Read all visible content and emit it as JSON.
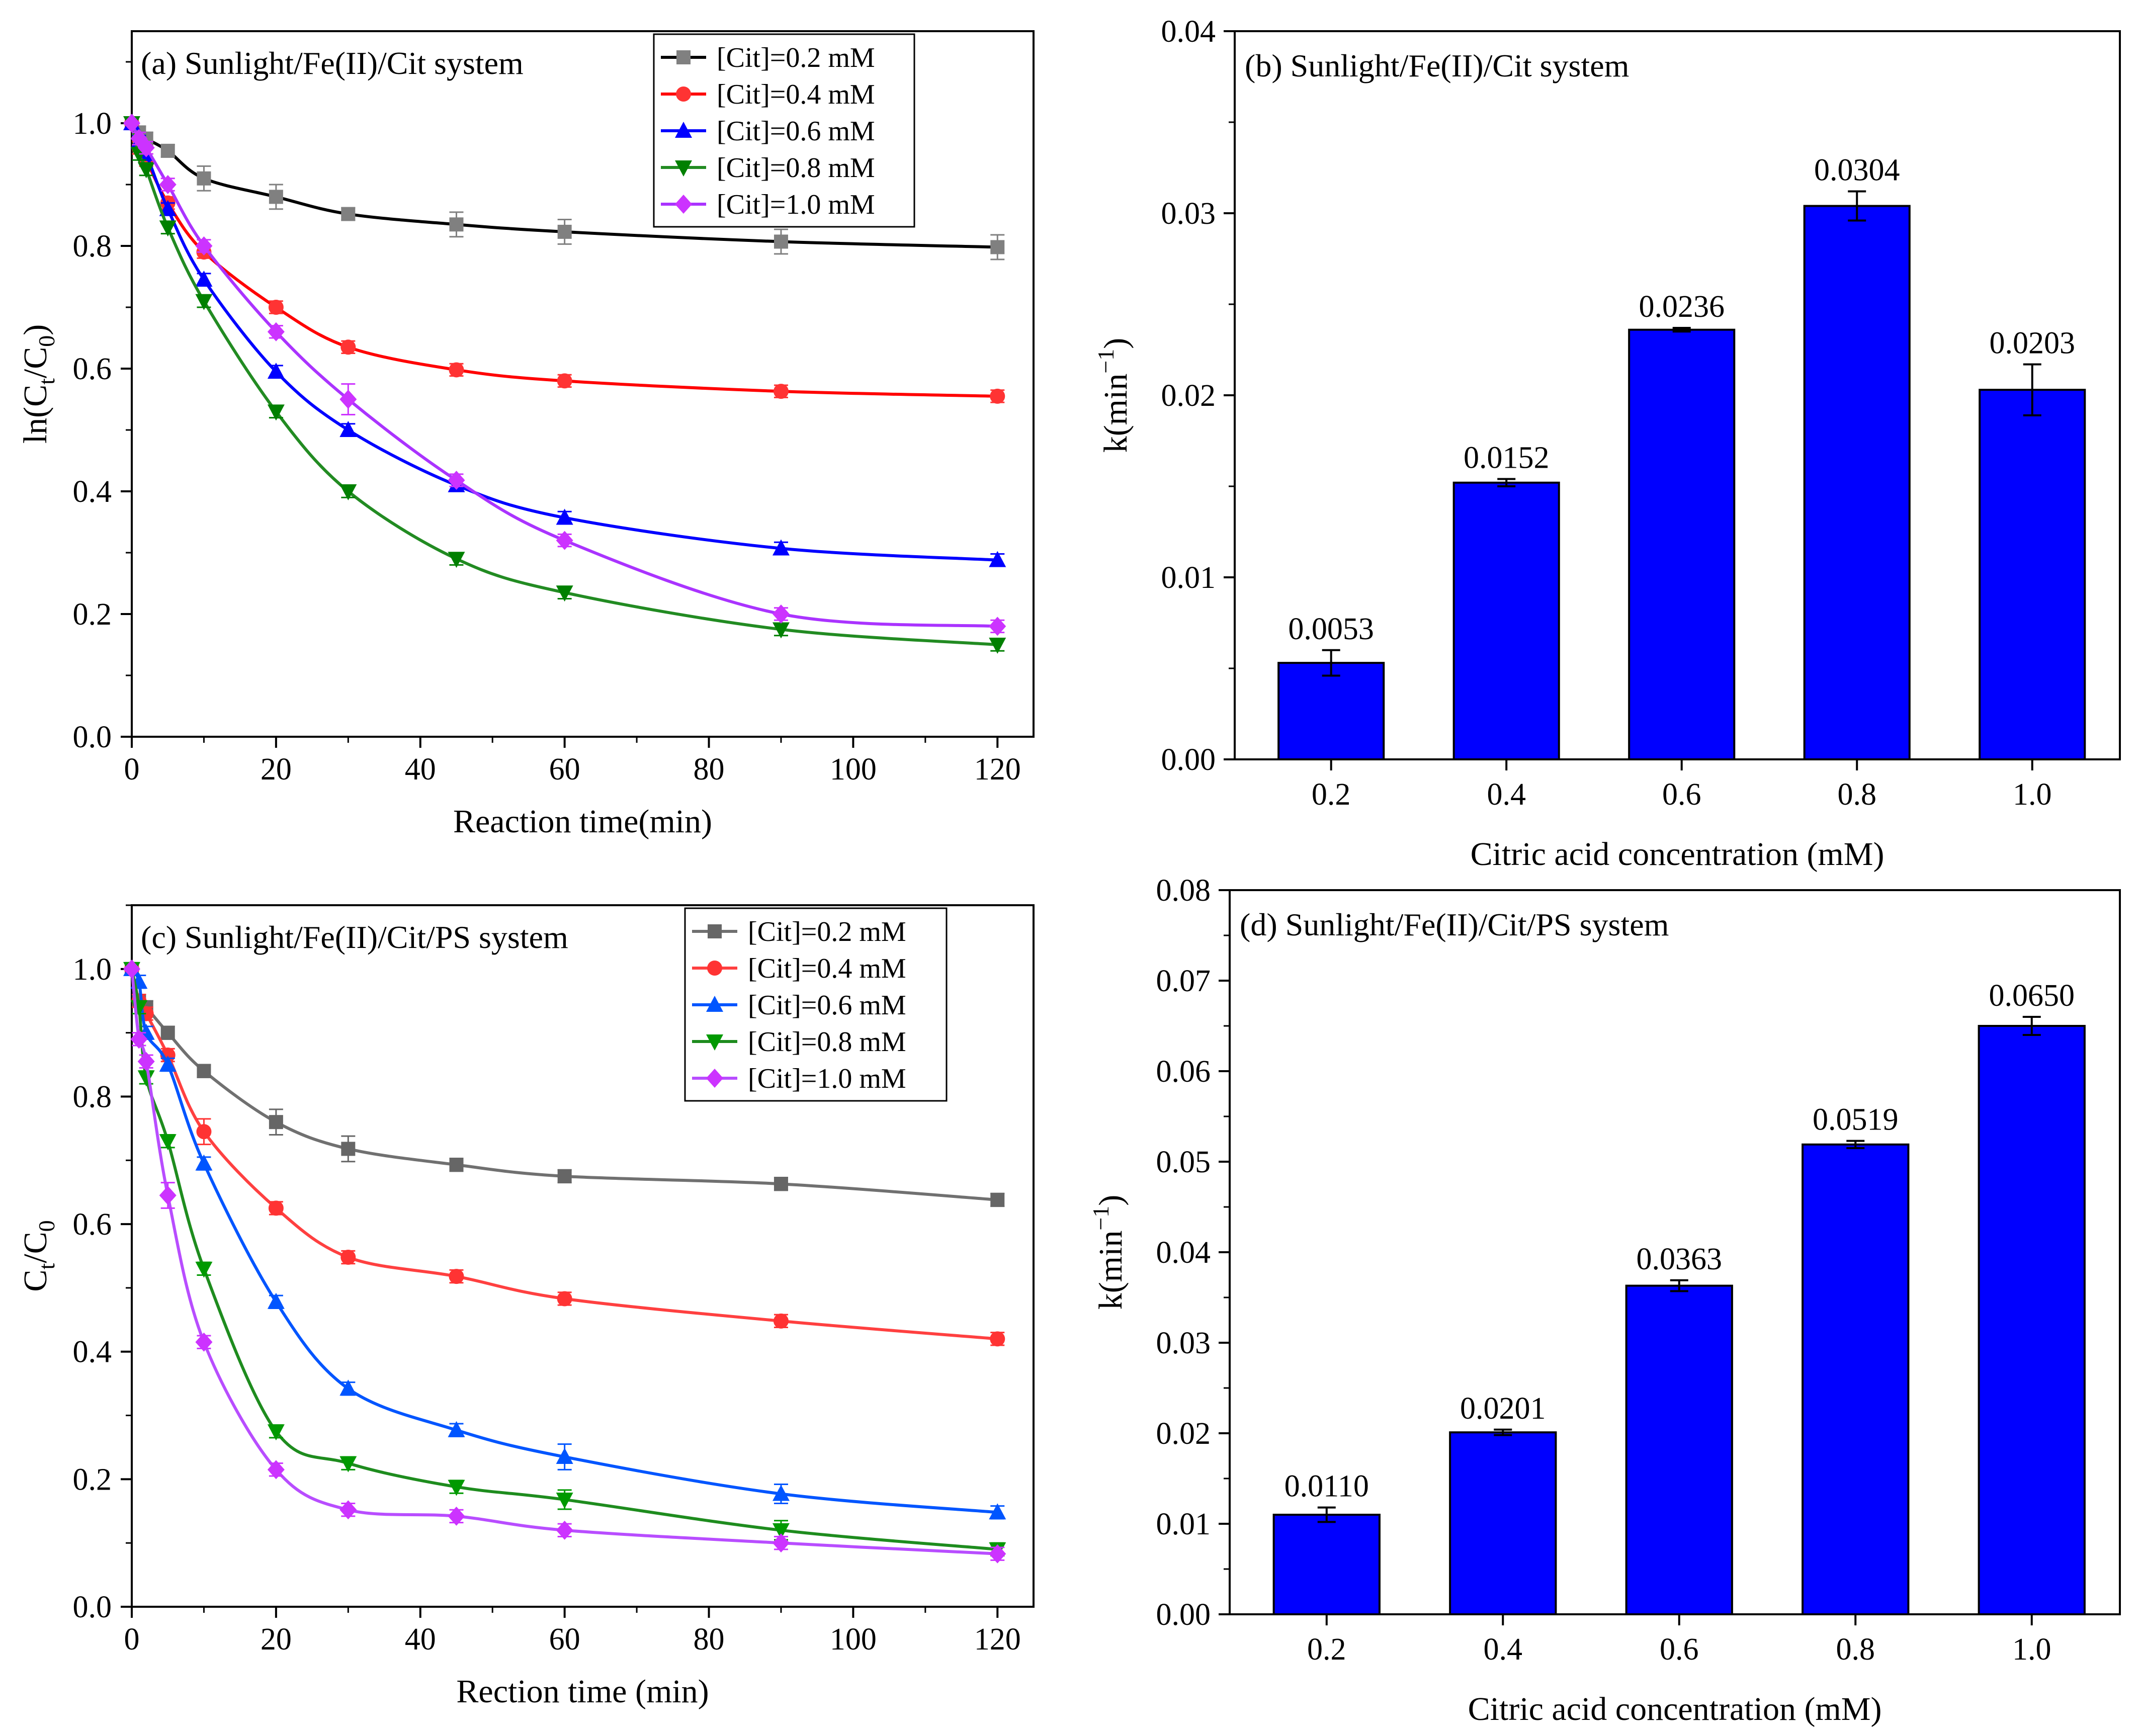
{
  "chart_data": [
    {
      "type": "line",
      "title": "(a) Sunlight/Fe(II)/Cit system",
      "xlabel": "Reaction time(min)",
      "ylabel": "ln(C_t/C_0)",
      "ylabel_main": "ln(C",
      "ylabel_sub1": "t",
      "ylabel_mid": "/C",
      "ylabel_sub2": "0",
      "ylabel_end": ")",
      "xlim": [
        0,
        125
      ],
      "ylim": [
        0,
        1.15
      ],
      "xticks": [
        0,
        20,
        40,
        60,
        80,
        100,
        120
      ],
      "yticks": [
        0.0,
        0.2,
        0.4,
        0.6,
        0.8,
        1.0
      ],
      "xtick_labels": [
        "0",
        "20",
        "40",
        "60",
        "80",
        "100",
        "120"
      ],
      "ytick_labels": [
        "0.0",
        "0.2",
        "0.4",
        "0.6",
        "0.8",
        "1.0"
      ],
      "legend_position": "top-right",
      "x": [
        0,
        1,
        2,
        5,
        10,
        20,
        30,
        45,
        60,
        90,
        120
      ],
      "series": [
        {
          "name": "[Cit]=0.2 mM",
          "color": "#808080",
          "line_color": "#000000",
          "marker": "square",
          "values": [
            1.0,
            0.985,
            0.975,
            0.955,
            0.91,
            0.88,
            0.852,
            0.835,
            0.823,
            0.807,
            0.798
          ],
          "errors": [
            0,
            0.01,
            0.01,
            0.01,
            0.02,
            0.02,
            0.01,
            0.02,
            0.02,
            0.02,
            0.02
          ]
        },
        {
          "name": "[Cit]=0.4 mM",
          "color": "#ff3333",
          "line_color": "#ff0000",
          "marker": "circle",
          "values": [
            1.0,
            0.96,
            0.94,
            0.87,
            0.79,
            0.7,
            0.635,
            0.598,
            0.58,
            0.563,
            0.555
          ],
          "errors": [
            0,
            0.01,
            0.01,
            0.01,
            0.01,
            0.01,
            0.01,
            0.01,
            0.01,
            0.01,
            0.01
          ]
        },
        {
          "name": "[Cit]=0.6 mM",
          "color": "#0000ff",
          "line_color": "#0000ff",
          "marker": "triangle-up",
          "values": [
            1.0,
            0.97,
            0.95,
            0.86,
            0.745,
            0.595,
            0.5,
            0.41,
            0.357,
            0.307,
            0.288
          ],
          "errors": [
            0,
            0.01,
            0.01,
            0.01,
            0.01,
            0.01,
            0.01,
            0.01,
            0.01,
            0.01,
            0.01
          ]
        },
        {
          "name": "[Cit]=0.8 mM",
          "color": "#008000",
          "line_color": "#228b22",
          "marker": "triangle-down",
          "values": [
            1.0,
            0.95,
            0.925,
            0.83,
            0.71,
            0.53,
            0.4,
            0.29,
            0.235,
            0.175,
            0.15
          ],
          "errors": [
            0,
            0.01,
            0.01,
            0.01,
            0.01,
            0.01,
            0.01,
            0.01,
            0.01,
            0.01,
            0.01
          ]
        },
        {
          "name": "[Cit]=1.0 mM",
          "color": "#cc33ff",
          "line_color": "#aa33ff",
          "marker": "diamond",
          "values": [
            1.0,
            0.975,
            0.96,
            0.9,
            0.8,
            0.66,
            0.55,
            0.418,
            0.32,
            0.2,
            0.18
          ],
          "errors": [
            0,
            0.01,
            0.01,
            0.01,
            0.01,
            0.01,
            0.025,
            0.01,
            0.01,
            0.01,
            0.01
          ]
        }
      ]
    },
    {
      "type": "bar",
      "title": "(b) Sunlight/Fe(II)/Cit system",
      "xlabel": "Citric acid concentration (mM)",
      "ylabel": "k(min^-1)",
      "ylabel_main": "k(min",
      "ylabel_sup": "−1",
      "ylabel_end": ")",
      "categories": [
        "0.2",
        "0.4",
        "0.6",
        "0.8",
        "1.0"
      ],
      "values": [
        0.0053,
        0.0152,
        0.0236,
        0.0304,
        0.0203
      ],
      "errors": [
        0.0007,
        0.0002,
        0.0001,
        0.0008,
        0.0014
      ],
      "value_labels": [
        "0.0053",
        "0.0152",
        "0.0236",
        "0.0304",
        "0.0203"
      ],
      "ylim": [
        0,
        0.04
      ],
      "yticks": [
        0,
        0.01,
        0.02,
        0.03,
        0.04
      ],
      "ytick_labels": [
        "0.00",
        "0.01",
        "0.02",
        "0.03",
        "0.04"
      ],
      "bar_color": "#0000ff"
    },
    {
      "type": "line",
      "title": "(c) Sunlight/Fe(II)/Cit/PS system",
      "xlabel": "Rection time (min)",
      "ylabel": "C_t/C_0",
      "ylabel_main": "C",
      "ylabel_sub1": "t",
      "ylabel_mid": "/C",
      "ylabel_sub2": "0",
      "ylabel_end": "",
      "xlim": [
        0,
        125
      ],
      "ylim": [
        0,
        1.1
      ],
      "xticks": [
        0,
        20,
        40,
        60,
        80,
        100,
        120
      ],
      "yticks": [
        0.0,
        0.2,
        0.4,
        0.6,
        0.8,
        1.0
      ],
      "xtick_labels": [
        "0",
        "20",
        "40",
        "60",
        "80",
        "100",
        "120"
      ],
      "ytick_labels": [
        "0.0",
        "0.2",
        "0.4",
        "0.6",
        "0.8",
        "1.0"
      ],
      "legend_position": "top-right",
      "x": [
        0,
        1,
        2,
        5,
        10,
        20,
        30,
        45,
        60,
        90,
        120
      ],
      "series": [
        {
          "name": "[Cit]=0.2 mM",
          "color": "#666666",
          "line_color": "#707070",
          "marker": "square",
          "values": [
            1.0,
            0.95,
            0.94,
            0.9,
            0.84,
            0.76,
            0.718,
            0.693,
            0.675,
            0.663,
            0.638
          ],
          "errors": [
            0,
            0.01,
            0.01,
            0.01,
            0.01,
            0.02,
            0.02,
            0.01,
            0.01,
            0.01,
            0.01
          ]
        },
        {
          "name": "[Cit]=0.4 mM",
          "color": "#ff3333",
          "line_color": "#ff4040",
          "marker": "circle",
          "values": [
            1.0,
            0.95,
            0.93,
            0.865,
            0.745,
            0.625,
            0.548,
            0.518,
            0.483,
            0.448,
            0.42
          ],
          "errors": [
            0,
            0.01,
            0.01,
            0.01,
            0.02,
            0.01,
            0.01,
            0.01,
            0.01,
            0.01,
            0.01
          ]
        },
        {
          "name": "[Cit]=0.6 mM",
          "color": "#0055ff",
          "line_color": "#0055ff",
          "marker": "triangle-up",
          "values": [
            1.0,
            0.98,
            0.9,
            0.85,
            0.695,
            0.478,
            0.342,
            0.277,
            0.235,
            0.177,
            0.148
          ],
          "errors": [
            0,
            0.01,
            0.01,
            0.01,
            0.01,
            0.01,
            0.01,
            0.01,
            0.02,
            0.015,
            0.01
          ]
        },
        {
          "name": "[Cit]=0.8 mM",
          "color": "#009900",
          "line_color": "#1e8c1e",
          "marker": "triangle-down",
          "values": [
            1.0,
            0.94,
            0.83,
            0.73,
            0.53,
            0.275,
            0.225,
            0.188,
            0.168,
            0.12,
            0.09
          ],
          "errors": [
            0,
            0.01,
            0.01,
            0.01,
            0.01,
            0.01,
            0.01,
            0.01,
            0.015,
            0.015,
            0.01
          ]
        },
        {
          "name": "[Cit]=1.0 mM",
          "color": "#cc33ff",
          "line_color": "#b84dff",
          "marker": "diamond",
          "values": [
            1.0,
            0.89,
            0.855,
            0.645,
            0.415,
            0.215,
            0.152,
            0.142,
            0.12,
            0.1,
            0.083
          ],
          "errors": [
            0,
            0.01,
            0.01,
            0.02,
            0.01,
            0.01,
            0.01,
            0.01,
            0.01,
            0.01,
            0.01
          ]
        }
      ]
    },
    {
      "type": "bar",
      "title": "(d) Sunlight/Fe(II)/Cit/PS system",
      "xlabel": "Citric acid concentration (mM)",
      "ylabel": "k(min^-1)",
      "ylabel_main": "k(min",
      "ylabel_sup": "−1",
      "ylabel_end": ")",
      "categories": [
        "0.2",
        "0.4",
        "0.6",
        "0.8",
        "1.0"
      ],
      "values": [
        0.011,
        0.0201,
        0.0363,
        0.0519,
        0.065
      ],
      "errors": [
        0.0008,
        0.0003,
        0.0006,
        0.0004,
        0.001
      ],
      "value_labels": [
        "0.0110",
        "0.0201",
        "0.0363",
        "0.0519",
        "0.0650"
      ],
      "ylim": [
        0,
        0.08
      ],
      "yticks": [
        0,
        0.01,
        0.02,
        0.03,
        0.04,
        0.05,
        0.06,
        0.07,
        0.08
      ],
      "ytick_labels": [
        "0.00",
        "0.01",
        "0.02",
        "0.03",
        "0.04",
        "0.05",
        "0.06",
        "0.07",
        "0.08"
      ],
      "bar_color": "#0000ff"
    }
  ]
}
